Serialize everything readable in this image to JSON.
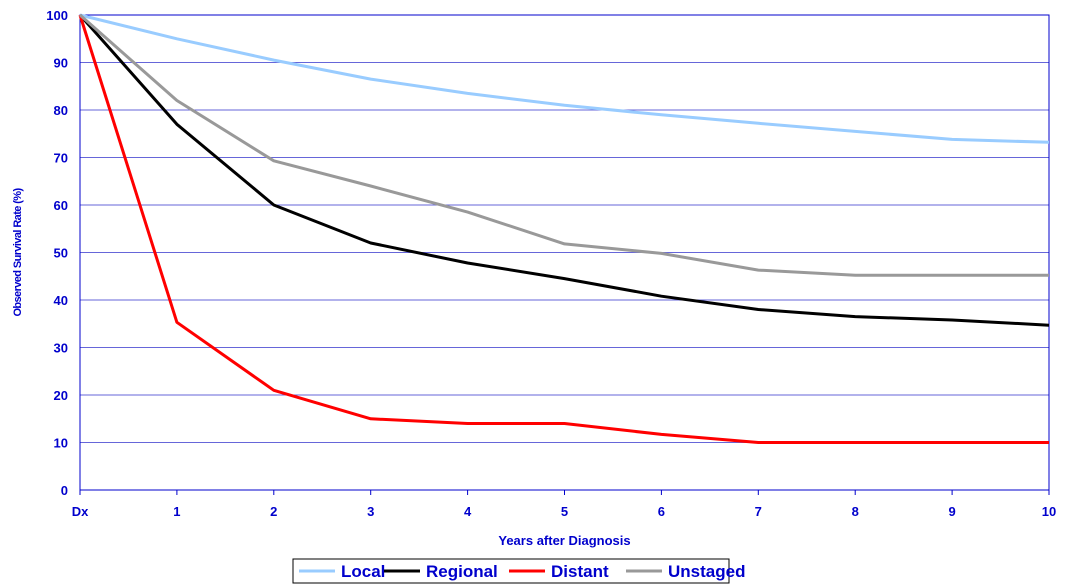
{
  "chart_data": {
    "type": "line",
    "title": "",
    "xlabel": "Years after Diagnosis",
    "ylabel": "Observed Survival Rate (%)",
    "categories": [
      "Dx",
      "1",
      "2",
      "3",
      "4",
      "5",
      "6",
      "7",
      "8",
      "9",
      "10"
    ],
    "ylim": [
      0,
      100
    ],
    "yticks": [
      0,
      10,
      20,
      30,
      40,
      50,
      60,
      70,
      80,
      90,
      100
    ],
    "grid": true,
    "legend_position": "bottom",
    "series": [
      {
        "name": "Local",
        "color": "#99ccff",
        "values": [
          100,
          95,
          90.5,
          86.5,
          83.5,
          81,
          79,
          77.2,
          75.5,
          73.8,
          73.2
        ]
      },
      {
        "name": "Regional",
        "color": "#000000",
        "values": [
          100,
          77,
          60,
          52,
          47.8,
          44.5,
          40.8,
          38,
          36.5,
          35.8,
          34.7
        ]
      },
      {
        "name": "Distant",
        "color": "#ff0000",
        "values": [
          100,
          35.3,
          21,
          15,
          14,
          14,
          11.7,
          10,
          10,
          10,
          10
        ]
      },
      {
        "name": "Unstaged",
        "color": "#999999",
        "values": [
          100,
          82,
          69.3,
          64,
          58.5,
          51.8,
          49.8,
          46.3,
          45.2,
          45.2,
          45.2
        ]
      }
    ]
  }
}
